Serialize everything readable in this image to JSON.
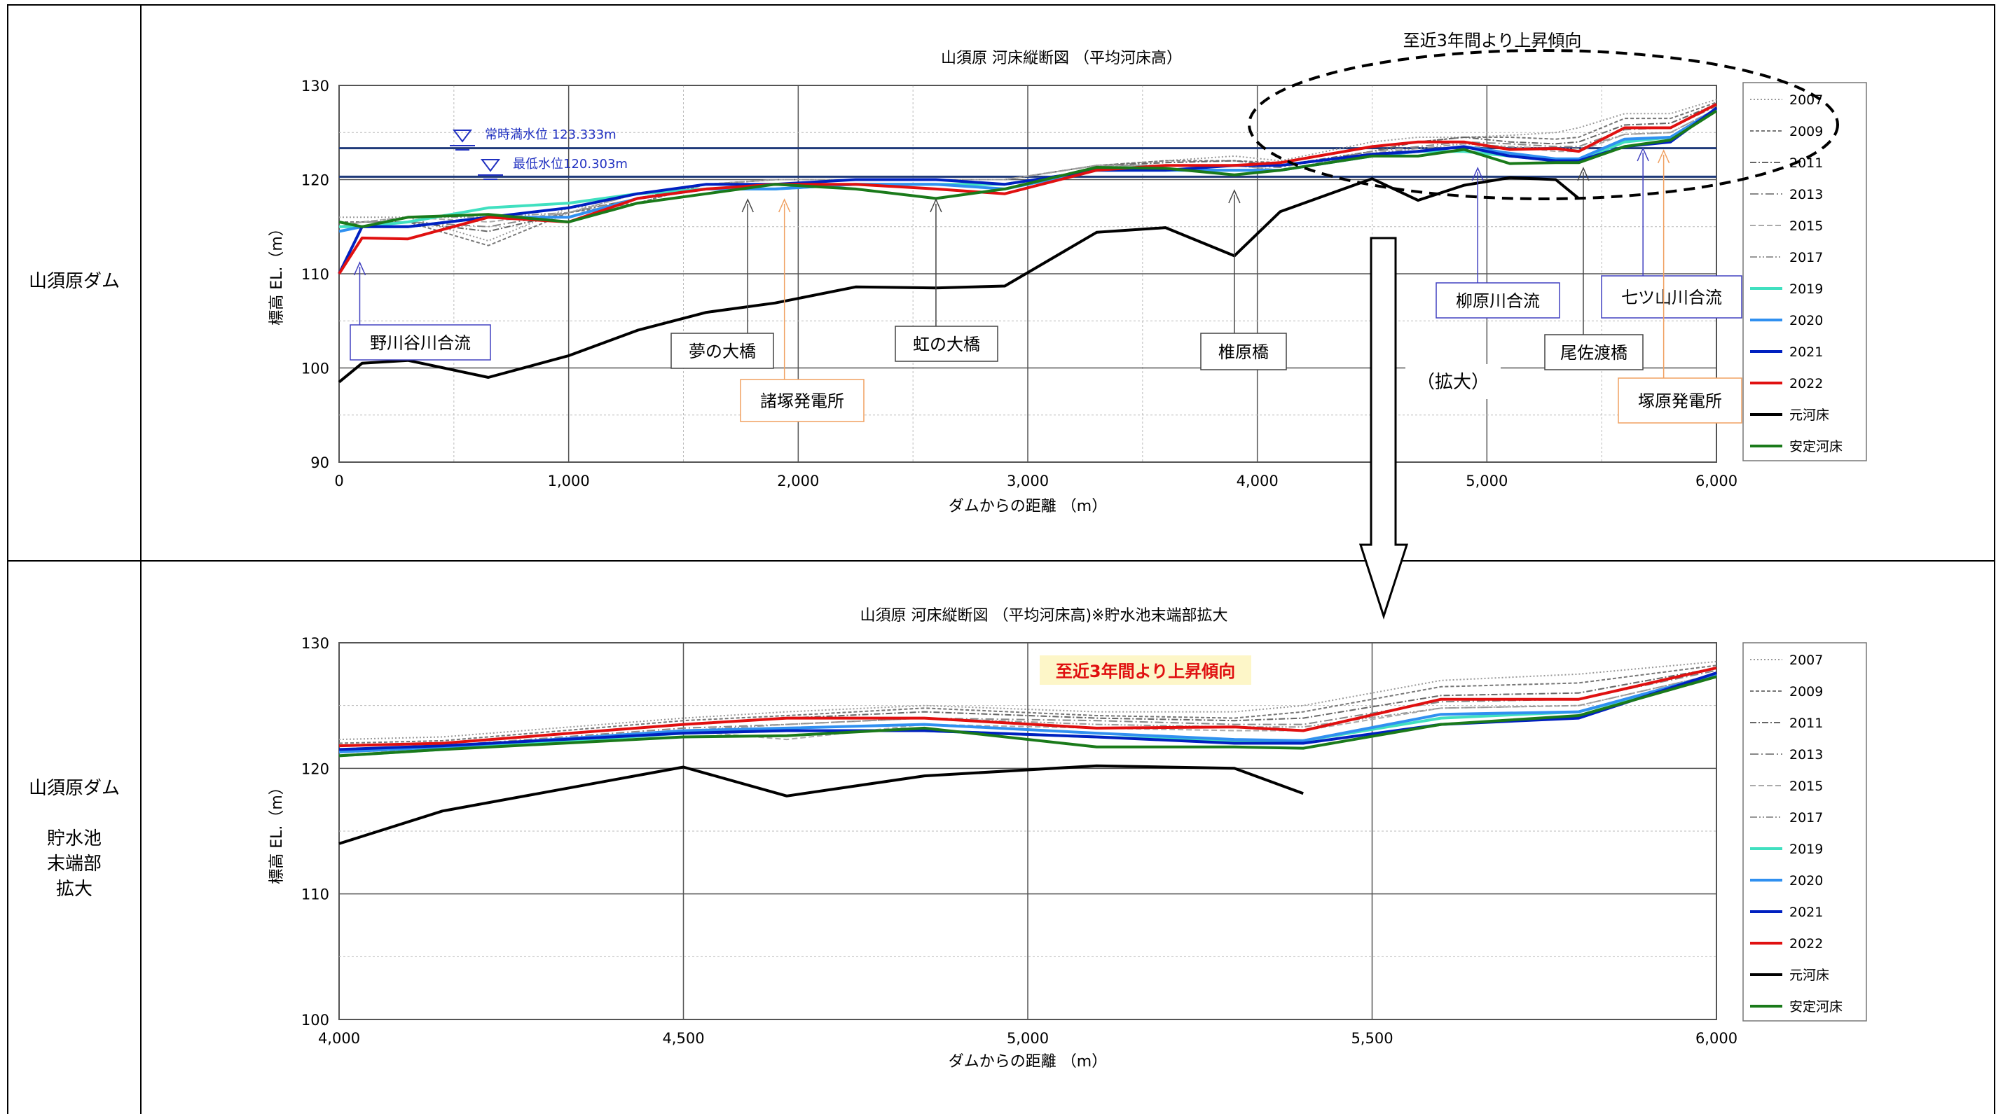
{
  "rows": {
    "top": {
      "label": "山須原ダム"
    },
    "bottom": {
      "label_lines": [
        "山須原ダム",
        "",
        "貯水池",
        "末端部",
        "拡大"
      ]
    }
  },
  "annotations": {
    "trend": "至近3年間より上昇傾向",
    "arrow_label": "（拡大）",
    "normal_water": "常時満水位  123.333m",
    "min_water": "最低水位120.303m"
  },
  "colors": {
    "blue_label": "#4040c0",
    "orange_label": "#f0a060",
    "water_line": "#1f3a7a"
  },
  "chart_data": [
    {
      "type": "line",
      "title": "山須原  河床縦断図 （平均河床高）",
      "xlabel": "ダムからの距離 （m）",
      "ylabel": "標高  EL.（m）",
      "xlim": [
        0,
        6000
      ],
      "ylim": [
        90,
        130
      ],
      "xticks": [
        "0",
        "1,000",
        "2,000",
        "3,000",
        "4,000",
        "5,000",
        "6,000"
      ],
      "yticks": [
        "90",
        "100",
        "110",
        "120",
        "130"
      ],
      "legend": "right",
      "hlines": [
        123.333,
        120.303
      ],
      "callouts": [
        {
          "text": "野川谷川合流",
          "x": 90,
          "color": "blue"
        },
        {
          "text": "夢の大橋",
          "x": 1780,
          "color": "black"
        },
        {
          "text": "諸塚発電所",
          "x": 1940,
          "color": "orange"
        },
        {
          "text": "虹の大橋",
          "x": 2600,
          "color": "black"
        },
        {
          "text": "椎原橋",
          "x": 3900,
          "color": "black"
        },
        {
          "text": "柳原川合流",
          "x": 4960,
          "color": "blue"
        },
        {
          "text": "尾佐渡橋",
          "x": 5420,
          "color": "black"
        },
        {
          "text": "七ツ山川合流",
          "x": 5680,
          "color": "blue"
        },
        {
          "text": "塚原発電所",
          "x": 5770,
          "color": "orange"
        }
      ],
      "x": [
        0,
        100,
        300,
        650,
        1000,
        1300,
        1600,
        1900,
        2250,
        2600,
        2900,
        3300,
        3600,
        3900,
        4100,
        4500,
        4700,
        4900,
        5100,
        5300,
        5400,
        5600,
        5800,
        6000
      ],
      "series": [
        {
          "name": "2007",
          "color": "#999999",
          "dash": "2,3",
          "values": [
            116,
            116,
            116,
            113.5,
            117,
            117.5,
            119.5,
            120,
            120,
            120,
            120,
            121.5,
            122,
            122.5,
            122,
            124,
            124.5,
            124.5,
            124.7,
            125,
            125.5,
            127,
            127,
            128.5
          ]
        },
        {
          "name": "2009",
          "color": "#777777",
          "dash": "5,3",
          "values": [
            115.5,
            115.5,
            115.5,
            113,
            116.5,
            117.5,
            119.5,
            120,
            120,
            120,
            120,
            121.5,
            122,
            122,
            121.8,
            123.5,
            124,
            124.5,
            124.5,
            124.3,
            124.5,
            126.5,
            126.5,
            128.2
          ]
        },
        {
          "name": "2011",
          "color": "#666666",
          "dash": "9,3,2,3",
          "values": [
            115,
            115.5,
            115.5,
            114.5,
            116.5,
            118,
            119.5,
            120,
            120,
            120,
            120,
            121.5,
            121.8,
            122,
            121.5,
            123,
            124,
            124.5,
            124,
            123.8,
            124,
            125.8,
            126,
            128
          ]
        },
        {
          "name": "2013",
          "color": "#888888",
          "dash": "12,4,2,4",
          "values": [
            115,
            115.5,
            115.5,
            115,
            116.5,
            118,
            119.5,
            120,
            120,
            120,
            120,
            121.5,
            121.5,
            121.5,
            121.3,
            123,
            123.5,
            124,
            123.8,
            123.5,
            123.5,
            125.3,
            125.5,
            127.8
          ]
        },
        {
          "name": "2015",
          "color": "#aaaaaa",
          "dash": "8,4",
          "values": [
            115,
            115.5,
            116,
            115.5,
            116.5,
            118.5,
            119.5,
            120,
            120,
            120,
            120,
            121.5,
            121.5,
            121.5,
            121,
            122.8,
            123,
            123.5,
            123.5,
            123,
            123,
            124.8,
            125,
            127.5
          ]
        },
        {
          "name": "2017",
          "color": "#999999",
          "dash": "10,3,2,3,2,3",
          "values": [
            115,
            115.5,
            116,
            116,
            116.5,
            118.5,
            119.5,
            120,
            120,
            120,
            120,
            121.5,
            121.5,
            121.5,
            121,
            122.8,
            123.3,
            123.8,
            123.5,
            123.3,
            123.3,
            124.8,
            125,
            127.5
          ]
        },
        {
          "name": "2019",
          "color": "#40e0c0",
          "dash": "",
          "values": [
            115,
            115,
            115.5,
            117,
            117.5,
            118.5,
            119,
            119,
            119.5,
            119.5,
            119.5,
            121,
            121,
            121,
            121,
            122.5,
            123,
            123,
            122.5,
            122,
            122,
            124,
            124.5,
            127.3
          ]
        },
        {
          "name": "2020",
          "color": "#3090f0",
          "dash": "",
          "values": [
            114.5,
            115,
            115,
            116,
            116,
            118,
            119,
            119,
            119.5,
            119.5,
            119,
            121,
            121,
            121,
            121,
            122.5,
            123,
            123.5,
            122.8,
            122.2,
            122.2,
            124.3,
            124.5,
            127.5
          ]
        },
        {
          "name": "2021",
          "color": "#0020c0",
          "dash": "",
          "values": [
            110,
            115,
            115,
            116,
            117,
            118.5,
            119.5,
            119.5,
            120,
            120,
            119.5,
            121,
            121,
            121.5,
            121.5,
            122.7,
            123,
            123.5,
            122.5,
            122,
            122,
            123.5,
            124,
            127.6
          ]
        },
        {
          "name": "2022",
          "color": "#e01010",
          "dash": "",
          "values": [
            110,
            113.8,
            113.7,
            116,
            115.5,
            118,
            119,
            119.5,
            119.5,
            119,
            118.5,
            121,
            121.5,
            121.5,
            121.8,
            123.5,
            124,
            124,
            123.2,
            123.3,
            123,
            125.5,
            125.5,
            128
          ]
        },
        {
          "name": "元河床",
          "color": "#000000",
          "dash": "",
          "values": [
            98.5,
            100.5,
            100.8,
            99,
            101.3,
            104,
            105.9,
            106.9,
            108.6,
            108.5,
            108.7,
            114.4,
            114.9,
            111.9,
            116.6,
            120.1,
            117.8,
            119.4,
            120.2,
            120,
            118,
            null,
            null,
            null
          ]
        },
        {
          "name": "安定河床",
          "color": "#1a7a1a",
          "dash": "",
          "values": [
            115.5,
            115,
            116,
            116.3,
            115.5,
            117.5,
            118.5,
            119.5,
            119,
            118,
            119,
            121.3,
            121.2,
            120.5,
            121,
            122.5,
            122.5,
            123.2,
            121.7,
            121.8,
            121.8,
            123.5,
            124.2,
            127.3
          ]
        }
      ]
    },
    {
      "type": "line",
      "title": "山須原  河床縦断図 （平均河床高)※貯水池末端部拡大",
      "xlabel": "ダムからの距離 （m）",
      "ylabel": "標高  EL.（m）",
      "xlim": [
        4000,
        6000
      ],
      "ylim": [
        100,
        130
      ],
      "xticks": [
        "4,000",
        "4,500",
        "5,000",
        "5,500",
        "6,000"
      ],
      "yticks": [
        "100",
        "110",
        "120",
        "130"
      ],
      "legend": "right",
      "x": [
        4000,
        4150,
        4500,
        4650,
        4850,
        5100,
        5300,
        5400,
        5600,
        5800,
        6000
      ],
      "series": [
        {
          "name": "2007",
          "color": "#999999",
          "dash": "2,3",
          "values": [
            122.3,
            122.5,
            124,
            124.5,
            125,
            124.5,
            124.5,
            125,
            127,
            127.5,
            128.5
          ]
        },
        {
          "name": "2009",
          "color": "#777777",
          "dash": "5,3",
          "values": [
            122,
            122.2,
            123.8,
            124.2,
            124.8,
            124.2,
            124,
            124.5,
            126.5,
            126.8,
            128.2
          ]
        },
        {
          "name": "2011",
          "color": "#666666",
          "dash": "9,3,2,3",
          "values": [
            121.8,
            122,
            123.5,
            124,
            124.5,
            124,
            123.8,
            124,
            125.8,
            126,
            128
          ]
        },
        {
          "name": "2013",
          "color": "#888888",
          "dash": "12,4,2,4",
          "values": [
            121.5,
            121.8,
            123.2,
            123.5,
            124,
            123.8,
            123.5,
            123.5,
            125.3,
            125.5,
            127.8
          ]
        },
        {
          "name": "2015",
          "color": "#aaaaaa",
          "dash": "8,4",
          "values": [
            121.3,
            121.5,
            123,
            122.3,
            123.5,
            123.2,
            123,
            123,
            124.8,
            125,
            127.5
          ]
        },
        {
          "name": "2017",
          "color": "#999999",
          "dash": "10,3,2,3,2,3",
          "values": [
            121.5,
            121.8,
            123,
            123.5,
            124,
            123.5,
            123.3,
            123.3,
            124.8,
            125,
            127.5
          ]
        },
        {
          "name": "2019",
          "color": "#40e0c0",
          "dash": "",
          "values": [
            121,
            121.5,
            122.8,
            123,
            123,
            122.5,
            122.2,
            122.2,
            124,
            124.5,
            127.3
          ]
        },
        {
          "name": "2020",
          "color": "#3090f0",
          "dash": "",
          "values": [
            121.3,
            121.7,
            123,
            123.2,
            123.5,
            122.8,
            122.3,
            122.2,
            124.3,
            124.5,
            127.5
          ]
        },
        {
          "name": "2021",
          "color": "#0020c0",
          "dash": "",
          "values": [
            121.5,
            121.8,
            122.8,
            123,
            123,
            122.5,
            122,
            122,
            123.5,
            124,
            127.6
          ]
        },
        {
          "name": "2022",
          "color": "#e01010",
          "dash": "",
          "values": [
            121.8,
            122,
            123.5,
            124,
            124,
            123.2,
            123.3,
            123,
            125.5,
            125.5,
            128
          ]
        },
        {
          "name": "元河床",
          "color": "#000000",
          "dash": "",
          "values": [
            114,
            116.6,
            120.1,
            117.8,
            119.4,
            120.2,
            120,
            118,
            null,
            null,
            null
          ]
        },
        {
          "name": "安定河床",
          "color": "#1a7a1a",
          "dash": "",
          "values": [
            121,
            121.5,
            122.5,
            122.6,
            123.2,
            121.7,
            121.7,
            121.6,
            123.5,
            124.2,
            127.3
          ]
        }
      ]
    }
  ]
}
